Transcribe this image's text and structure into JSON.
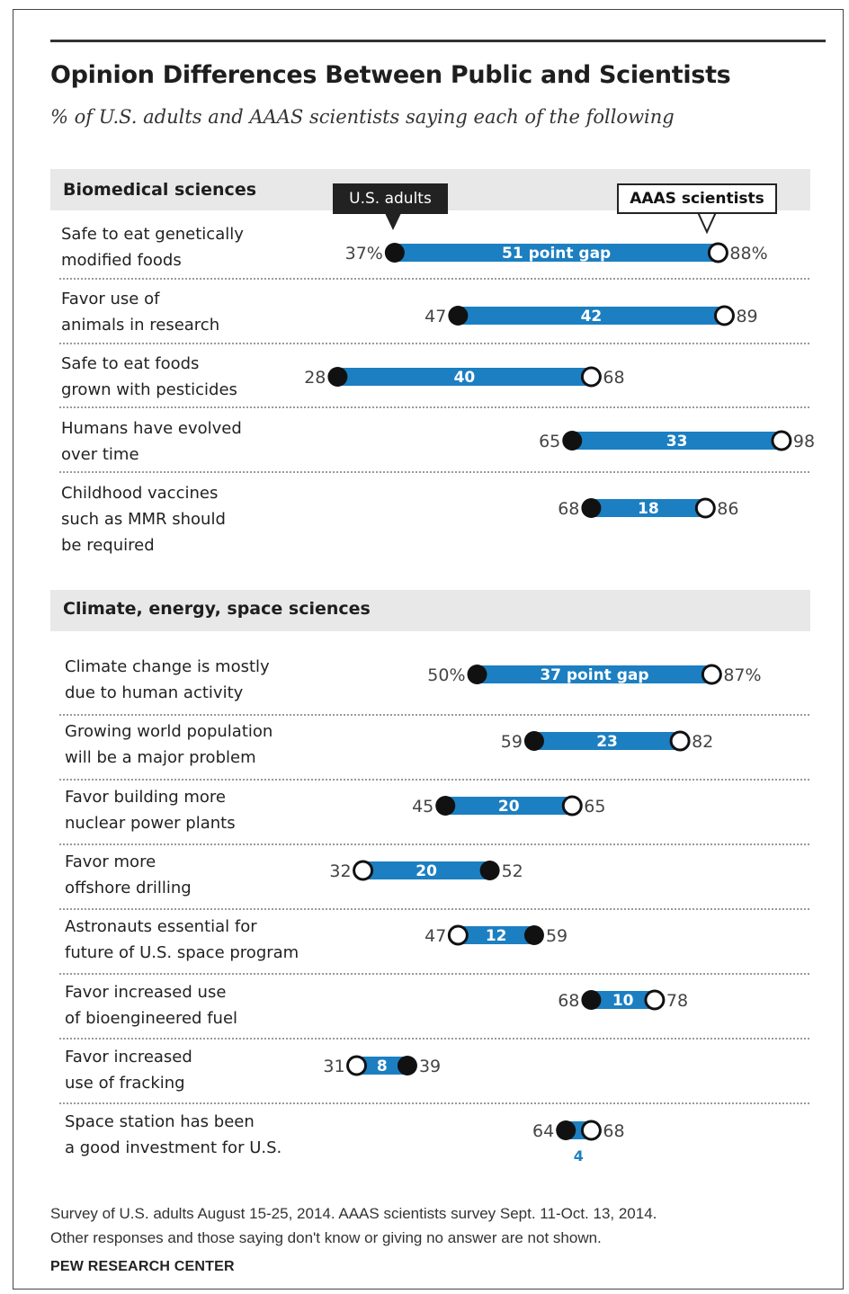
{
  "title": "Opinion Differences Between Public and Scientists",
  "subtitle": "% of U.S. adults and AAAS scientists saying each of the following",
  "legend": {
    "adults": "U.S. adults",
    "scientists": "AAAS scientists"
  },
  "footnote": [
    "Survey of U.S. adults August 15-25, 2014. AAAS scientists survey Sept. 11-Oct. 13, 2014.",
    "Other responses and those saying don't know or giving no answer are not shown."
  ],
  "source": "PEW RESEARCH CENTER",
  "colors": {
    "bar": "#1c7fc1",
    "adults_dot": "#111111",
    "scientists_dot": "#ffffff",
    "gap_text": "#ffffff",
    "section_band": "#e8e8e8"
  },
  "chart_data": {
    "type": "dot-range",
    "units": "%",
    "sections": [
      {
        "name": "Biomedical sciences",
        "items": [
          {
            "label": [
              "Safe to eat genetically",
              "modified foods"
            ],
            "adults": 37,
            "scientists": 88,
            "gap": 51,
            "gap_text": "51 point gap",
            "adults_text": "37%",
            "scientists_text": "88%"
          },
          {
            "label": [
              "Favor use of",
              "animals in research"
            ],
            "adults": 47,
            "scientists": 89,
            "gap": 42,
            "gap_text": "42",
            "adults_text": "47",
            "scientists_text": "89"
          },
          {
            "label": [
              "Safe to eat foods",
              "grown with pesticides"
            ],
            "adults": 28,
            "scientists": 68,
            "gap": 40,
            "gap_text": "40",
            "adults_text": "28",
            "scientists_text": "68"
          },
          {
            "label": [
              "Humans have evolved",
              "over time"
            ],
            "adults": 65,
            "scientists": 98,
            "gap": 33,
            "gap_text": "33",
            "adults_text": "65",
            "scientists_text": "98"
          },
          {
            "label": [
              "Childhood vaccines",
              "such as MMR should",
              "be required"
            ],
            "adults": 68,
            "scientists": 86,
            "gap": 18,
            "gap_text": "18",
            "adults_text": "68",
            "scientists_text": "86"
          }
        ]
      },
      {
        "name": "Climate, energy, space sciences",
        "items": [
          {
            "label": [
              "Climate change is mostly",
              "due to human activity"
            ],
            "adults": 50,
            "scientists": 87,
            "gap": 37,
            "gap_text": "37 point gap",
            "adults_text": "50%",
            "scientists_text": "87%"
          },
          {
            "label": [
              "Growing world population",
              "will be a major problem"
            ],
            "adults": 59,
            "scientists": 82,
            "gap": 23,
            "gap_text": "23",
            "adults_text": "59",
            "scientists_text": "82"
          },
          {
            "label": [
              "Favor building more",
              "nuclear power plants"
            ],
            "adults": 45,
            "scientists": 65,
            "gap": 20,
            "gap_text": "20",
            "adults_text": "45",
            "scientists_text": "65"
          },
          {
            "label": [
              "Favor more",
              "offshore drilling"
            ],
            "adults": 52,
            "scientists": 32,
            "gap": 20,
            "gap_text": "20",
            "adults_text": "52",
            "scientists_text": "32"
          },
          {
            "label": [
              "Astronauts essential for",
              "future of U.S. space program"
            ],
            "adults": 59,
            "scientists": 47,
            "gap": 12,
            "gap_text": "12",
            "adults_text": "59",
            "scientists_text": "47"
          },
          {
            "label": [
              "Favor increased use",
              "of bioengineered fuel"
            ],
            "adults": 68,
            "scientists": 78,
            "gap": 10,
            "gap_text": "10",
            "adults_text": "68",
            "scientists_text": "78"
          },
          {
            "label": [
              "Favor increased",
              "use of fracking"
            ],
            "adults": 39,
            "scientists": 31,
            "gap": 8,
            "gap_text": "8",
            "adults_text": "39",
            "scientists_text": "31"
          },
          {
            "label": [
              "Space station has been",
              "a good investment for U.S."
            ],
            "adults": 64,
            "scientists": 68,
            "gap": 4,
            "gap_text": "4",
            "adults_text": "64",
            "scientists_text": "68"
          }
        ]
      }
    ]
  }
}
